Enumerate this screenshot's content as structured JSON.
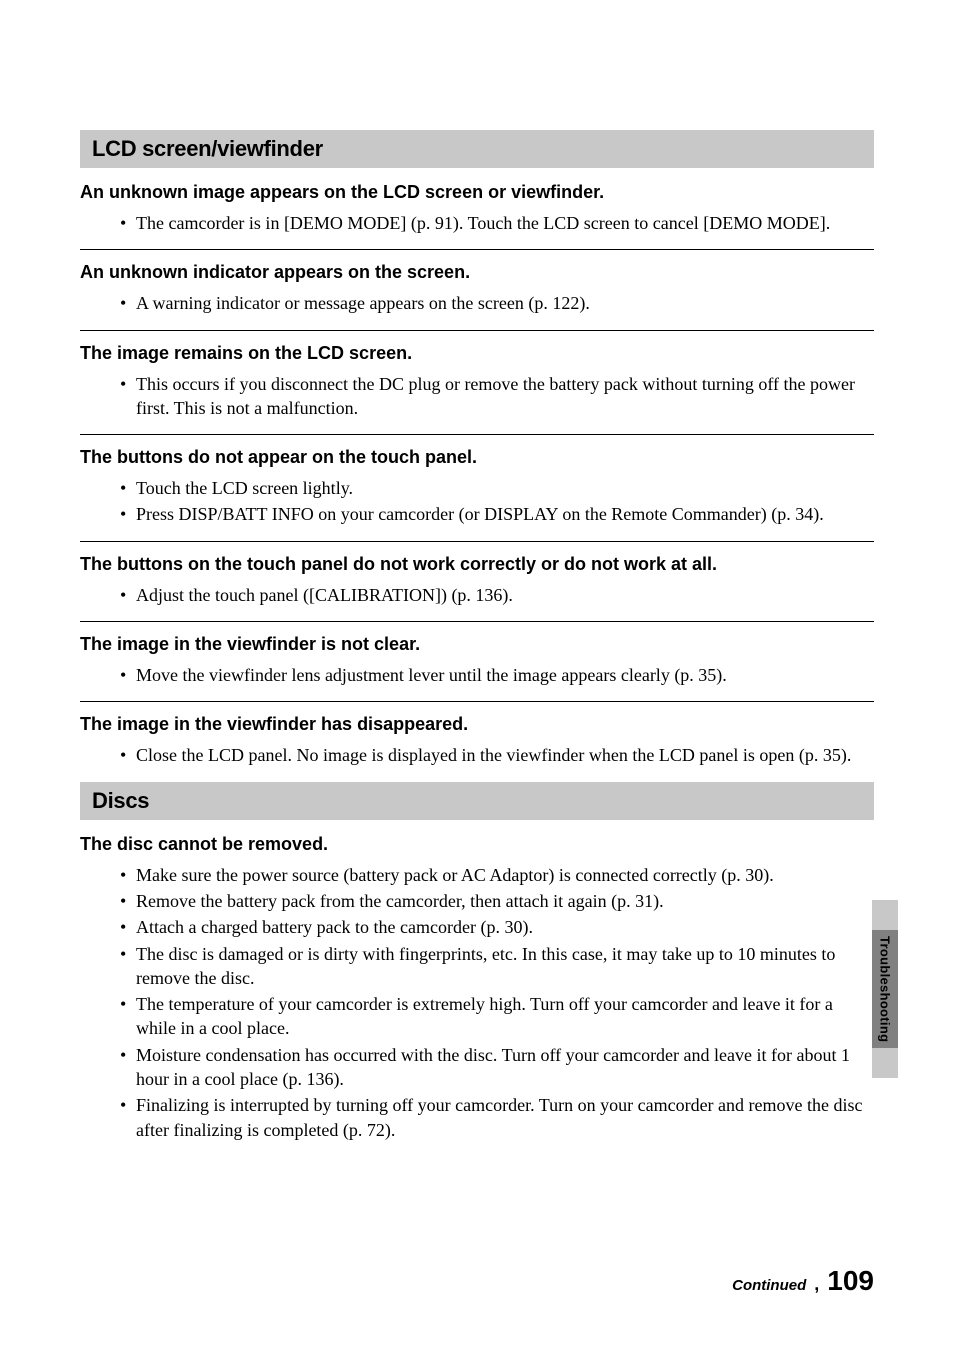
{
  "sections": [
    {
      "header": "LCD screen/viewfinder",
      "topics": [
        {
          "title": "An unknown image appears on the LCD screen or viewfinder.",
          "items": [
            "The camcorder is in [DEMO MODE] (p. 91). Touch the LCD screen to cancel [DEMO MODE]."
          ]
        },
        {
          "title": "An unknown indicator appears on the screen.",
          "items": [
            "A warning indicator or message appears on the screen (p. 122)."
          ]
        },
        {
          "title": "The image remains on the LCD screen.",
          "items": [
            "This occurs if you disconnect the DC plug or remove the battery pack without turning off the power first. This is not a malfunction."
          ]
        },
        {
          "title": "The buttons do not appear on the touch panel.",
          "items": [
            "Touch the LCD screen lightly.",
            "Press DISP/BATT INFO on your camcorder (or DISPLAY on the Remote Commander) (p. 34)."
          ]
        },
        {
          "title": "The buttons on the touch panel do not work correctly or do not work at all.",
          "items": [
            "Adjust the touch panel ([CALIBRATION]) (p. 136)."
          ]
        },
        {
          "title": "The image in the viewfinder is not clear.",
          "items": [
            "Move the viewfinder lens adjustment lever until the image appears clearly (p. 35)."
          ]
        },
        {
          "title": "The image in the viewfinder has disappeared.",
          "items": [
            "Close the LCD panel. No image is displayed in the viewfinder when the LCD panel is open (p. 35)."
          ]
        }
      ]
    },
    {
      "header": "Discs",
      "topics": [
        {
          "title": "The disc cannot be removed.",
          "items": [
            "Make sure the power source (battery pack or AC Adaptor) is connected correctly (p. 30).",
            "Remove the battery pack from the camcorder, then attach it again (p. 31).",
            "Attach a charged battery pack to the camcorder (p. 30).",
            "The disc is damaged or is dirty with fingerprints, etc. In this case, it may take up to 10 minutes to remove the disc.",
            "The temperature of your camcorder is extremely high. Turn off your camcorder and leave it for a while in a cool place.",
            "Moisture condensation has occurred with the disc. Turn off your camcorder and leave it for about 1 hour in a cool place (p. 136).",
            "Finalizing is interrupted by turning off your camcorder. Turn on your camcorder and remove the disc after finalizing is completed (p. 72)."
          ]
        }
      ]
    }
  ],
  "sideTab": "Troubleshooting",
  "footer": {
    "continued": "Continued",
    "arrow": ",",
    "pageNum": "109"
  }
}
